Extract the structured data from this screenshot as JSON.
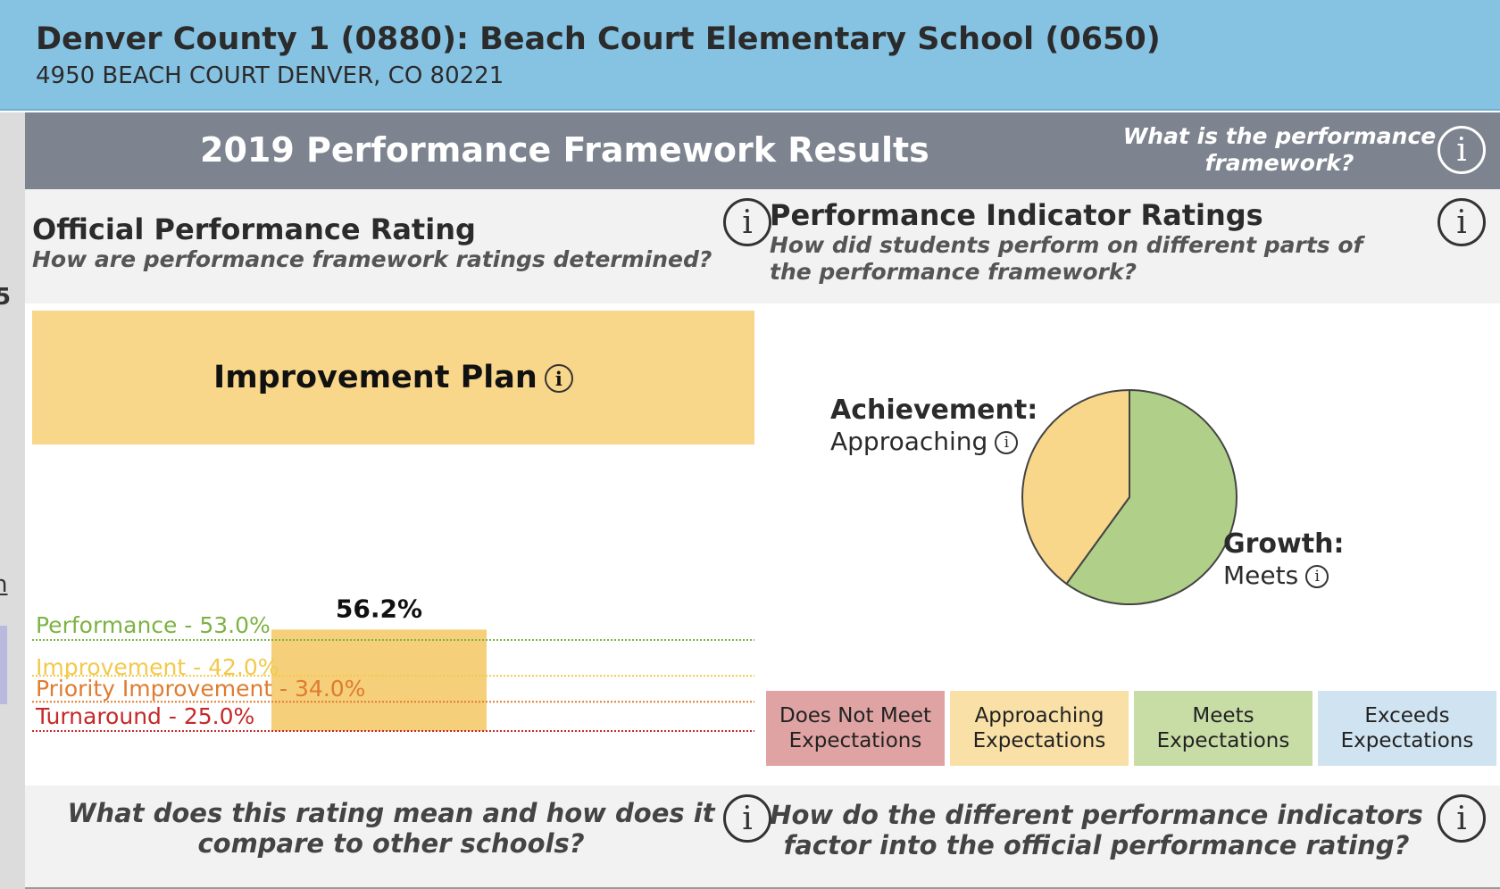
{
  "header": {
    "title": "Denver County 1 (0880): Beach Court Elementary School (0650)",
    "address": "4950 BEACH COURT DENVER, CO 80221"
  },
  "left_sliver": {
    "chars": [
      "5",
      "n"
    ]
  },
  "banner": {
    "title": "2019 Performance Framework Results",
    "question": "What is the performance framework?",
    "info_icon": "info-icon"
  },
  "official_rating": {
    "title": "Official Performance Rating",
    "subtitle": "How are performance framework ratings determined?",
    "rating": "Improvement Plan",
    "score_label": "56.2%",
    "score_value": 56.2,
    "cut_points": [
      {
        "label": "Performance - 53.0%",
        "value": 53.0,
        "color": "#7cb342"
      },
      {
        "label": "Improvement - 42.0%",
        "value": 42.0,
        "color": "#f2c94c"
      },
      {
        "label": "Priority Improvement - 34.0%",
        "value": 34.0,
        "color": "#e07b2f"
      },
      {
        "label": "Turnaround - 25.0%",
        "value": 25.0,
        "color": "#c62828"
      }
    ],
    "bottom_question": "What does this rating mean and how does it compare to other schools?"
  },
  "indicator_ratings": {
    "title": "Performance Indicator Ratings",
    "subtitle": "How did students perform on different parts of the performance framework?",
    "achievement": {
      "label": "Achievement:",
      "value": "Approaching"
    },
    "growth": {
      "label": "Growth:",
      "value": "Meets"
    },
    "bottom_question": "How do the different performance indicators factor into the official performance rating?"
  },
  "chart_data": {
    "type": "pie",
    "slices": [
      {
        "name": "Growth",
        "rating": "Meets",
        "fraction": 0.6,
        "color": "#b0cf88"
      },
      {
        "name": "Achievement",
        "rating": "Approaching",
        "fraction": 0.4,
        "color": "#f8d68a"
      }
    ]
  },
  "legend": [
    {
      "label": "Does Not Meet Expectations",
      "color": "#e0a3a3"
    },
    {
      "label": "Approaching Expectations",
      "color": "#f8e0a6"
    },
    {
      "label": "Meets Expectations",
      "color": "#c8dca6"
    },
    {
      "label": "Exceeds Expectations",
      "color": "#cfe3f1"
    }
  ],
  "colors": {
    "header_bg": "#86c3e3",
    "banner_bg": "#7d848f",
    "rating_bg": "#f8d68a",
    "score_bar": "#f6cf7a"
  }
}
